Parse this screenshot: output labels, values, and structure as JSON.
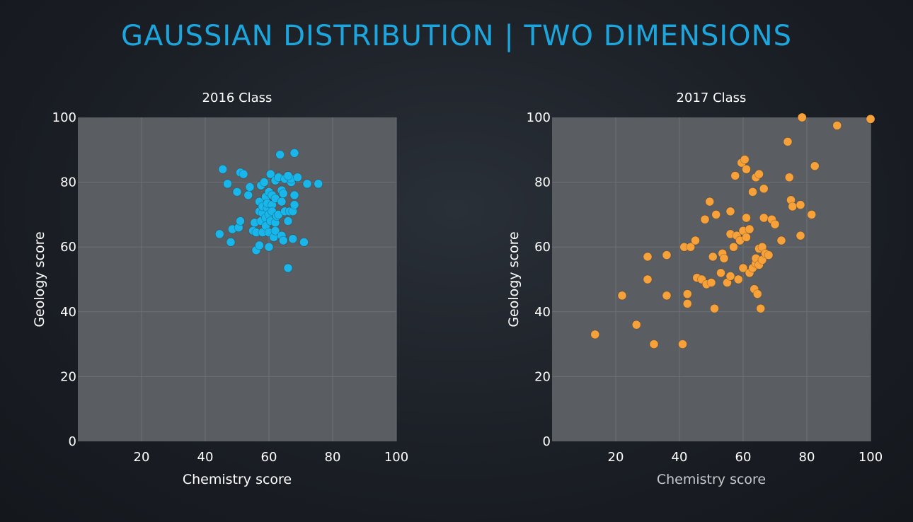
{
  "title": "GAUSSIAN DISTRIBUTION | TWO DIMENSIONS",
  "colors": {
    "title": "#1ca6dd",
    "series_2016": "#1ab6ea",
    "series_2017": "#f7a13a",
    "plot_bg": "#5a5e63"
  },
  "chart_data": [
    {
      "type": "scatter",
      "title": "2016 Class",
      "xlabel": "Chemistry score",
      "ylabel": "Geology score",
      "xlim": [
        0,
        100
      ],
      "ylim": [
        0,
        100
      ],
      "xticks": [
        20,
        40,
        60,
        80,
        100
      ],
      "yticks": [
        0,
        20,
        40,
        60,
        80,
        100
      ],
      "grid": true,
      "color": "#1ab6ea",
      "points": [
        [
          44.5,
          64
        ],
        [
          45.5,
          84
        ],
        [
          47,
          79.5
        ],
        [
          48,
          61.5
        ],
        [
          48.5,
          65.5
        ],
        [
          50,
          77
        ],
        [
          50.5,
          66
        ],
        [
          51,
          68
        ],
        [
          51,
          83
        ],
        [
          52,
          82.5
        ],
        [
          53.5,
          76
        ],
        [
          54,
          78.5
        ],
        [
          55,
          65
        ],
        [
          55.5,
          67.5
        ],
        [
          56,
          64.5
        ],
        [
          56,
          59
        ],
        [
          57,
          60.5
        ],
        [
          57,
          71
        ],
        [
          57,
          74
        ],
        [
          57.5,
          79
        ],
        [
          57.5,
          68
        ],
        [
          58,
          70.5
        ],
        [
          58,
          64.5
        ],
        [
          58,
          72.5
        ],
        [
          58.5,
          80
        ],
        [
          59,
          75.5
        ],
        [
          59,
          69
        ],
        [
          59,
          66.5
        ],
        [
          59.5,
          72
        ],
        [
          59.5,
          73.5
        ],
        [
          60,
          70
        ],
        [
          60,
          64.5
        ],
        [
          60,
          60
        ],
        [
          60,
          77
        ],
        [
          60.5,
          82.5
        ],
        [
          60.5,
          68
        ],
        [
          61,
          76
        ],
        [
          61,
          73
        ],
        [
          61,
          71
        ],
        [
          61.5,
          63
        ],
        [
          62,
          80.5
        ],
        [
          62,
          75
        ],
        [
          62,
          67.5
        ],
        [
          62,
          65
        ],
        [
          62.5,
          69.5
        ],
        [
          63,
          81.5
        ],
        [
          63,
          70
        ],
        [
          63.5,
          88.5
        ],
        [
          64,
          77.5
        ],
        [
          64,
          63.5
        ],
        [
          64,
          74
        ],
        [
          64.5,
          76.5
        ],
        [
          64.5,
          62
        ],
        [
          65,
          81
        ],
        [
          65,
          71
        ],
        [
          66,
          68
        ],
        [
          66,
          53.5
        ],
        [
          66.5,
          71
        ],
        [
          67,
          80
        ],
        [
          67,
          81
        ],
        [
          67.5,
          62.5
        ],
        [
          67.5,
          71
        ],
        [
          68,
          73
        ],
        [
          68,
          76
        ],
        [
          68,
          89
        ],
        [
          69,
          81.5
        ],
        [
          71,
          61.5
        ],
        [
          72,
          79.5
        ],
        [
          75.5,
          79.5
        ],
        [
          66,
          82
        ]
      ]
    },
    {
      "type": "scatter",
      "title": "2017 Class",
      "xlabel": "Chemistry score",
      "ylabel": "Geology score",
      "xlim": [
        0,
        100
      ],
      "ylim": [
        0,
        100
      ],
      "xticks": [
        20,
        40,
        60,
        80,
        100
      ],
      "yticks": [
        0,
        20,
        40,
        60,
        80,
        100
      ],
      "grid": true,
      "color": "#f7a13a",
      "points": [
        [
          13.5,
          33
        ],
        [
          22,
          45
        ],
        [
          26.5,
          36
        ],
        [
          30,
          57
        ],
        [
          30,
          50
        ],
        [
          32,
          30
        ],
        [
          36,
          57.5
        ],
        [
          36,
          45
        ],
        [
          41,
          30
        ],
        [
          41.5,
          60
        ],
        [
          42.5,
          42.5
        ],
        [
          42.5,
          45.5
        ],
        [
          43.5,
          60
        ],
        [
          45,
          62
        ],
        [
          45.5,
          50.5
        ],
        [
          47,
          50
        ],
        [
          48,
          68.5
        ],
        [
          48.5,
          48.5
        ],
        [
          49.5,
          74
        ],
        [
          50,
          49
        ],
        [
          50.5,
          57
        ],
        [
          51,
          41
        ],
        [
          51.5,
          70
        ],
        [
          53,
          52
        ],
        [
          53.5,
          58
        ],
        [
          54,
          56.5
        ],
        [
          55,
          49
        ],
        [
          56,
          64
        ],
        [
          56,
          71
        ],
        [
          56,
          51
        ],
        [
          57,
          60
        ],
        [
          57.5,
          82
        ],
        [
          58,
          63.5
        ],
        [
          58.5,
          50
        ],
        [
          59,
          62
        ],
        [
          59.5,
          86
        ],
        [
          60,
          65
        ],
        [
          60,
          53.5
        ],
        [
          60.5,
          87
        ],
        [
          61,
          69
        ],
        [
          61,
          84
        ],
        [
          61,
          63
        ],
        [
          62,
          52
        ],
        [
          62,
          65.5
        ],
        [
          63,
          77
        ],
        [
          63,
          53.5
        ],
        [
          63.5,
          47
        ],
        [
          64,
          81.5
        ],
        [
          64,
          55
        ],
        [
          64,
          56.5
        ],
        [
          64.5,
          45.5
        ],
        [
          65,
          82.5
        ],
        [
          65,
          59.5
        ],
        [
          65,
          54.5
        ],
        [
          65.5,
          41
        ],
        [
          66,
          60
        ],
        [
          66,
          56
        ],
        [
          66.5,
          69
        ],
        [
          66.5,
          78
        ],
        [
          67,
          58
        ],
        [
          68,
          57.5
        ],
        [
          69,
          68.5
        ],
        [
          70,
          67
        ],
        [
          72,
          62
        ],
        [
          74,
          92.5
        ],
        [
          74.5,
          81.5
        ],
        [
          75,
          74.5
        ],
        [
          75.5,
          72.5
        ],
        [
          78,
          63.5
        ],
        [
          78,
          73
        ],
        [
          78.5,
          100
        ],
        [
          81.5,
          70
        ],
        [
          82.5,
          85
        ],
        [
          89.5,
          97.5
        ],
        [
          100,
          99.5
        ]
      ]
    }
  ]
}
